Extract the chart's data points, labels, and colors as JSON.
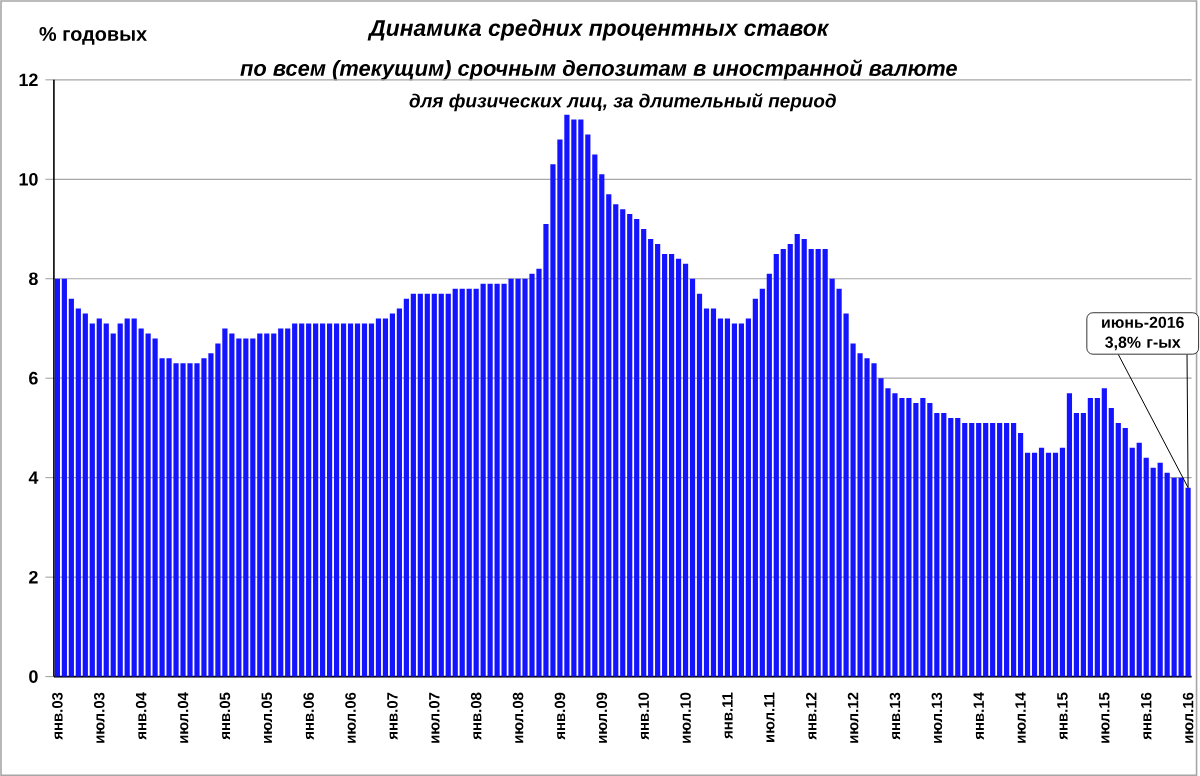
{
  "chart_data": {
    "type": "bar",
    "title": "Динамика средних процентных ставок",
    "subtitle": "по **всем** (текущим) срочным депозитам в иностранной валюте",
    "ylabel": "% годовых",
    "annotations": [
      "для физических лиц, за длительный период",
      "июнь-2016 3,8% г-ых"
    ],
    "categories": [
      "янв.03",
      null,
      null,
      null,
      null,
      null,
      "июл.03",
      null,
      null,
      null,
      null,
      null,
      "янв.04",
      null,
      null,
      null,
      null,
      null,
      "июл.04",
      null,
      null,
      null,
      null,
      null,
      "янв.05",
      null,
      null,
      null,
      null,
      null,
      "июл.05",
      null,
      null,
      null,
      null,
      null,
      "янв.06",
      null,
      null,
      null,
      null,
      null,
      "июл.06",
      null,
      null,
      null,
      null,
      null,
      "янв.07",
      null,
      null,
      null,
      null,
      null,
      "июл.07",
      null,
      null,
      null,
      null,
      null,
      "янв.08",
      null,
      null,
      null,
      null,
      null,
      "июл.08",
      null,
      null,
      null,
      null,
      null,
      "янв.09",
      null,
      null,
      null,
      null,
      null,
      "июл.09",
      null,
      null,
      null,
      null,
      null,
      "янв.10",
      null,
      null,
      null,
      null,
      null,
      "июл.10",
      null,
      null,
      null,
      null,
      null,
      "янв.11",
      null,
      null,
      null,
      null,
      null,
      "июл.11",
      null,
      null,
      null,
      null,
      null,
      "янв.12",
      null,
      null,
      null,
      null,
      null,
      "июл.12",
      null,
      null,
      null,
      null,
      null,
      "янв.13",
      null,
      null,
      null,
      null,
      null,
      "июл.13",
      null,
      null,
      null,
      null,
      null,
      "янв.14",
      null,
      null,
      null,
      null,
      null,
      "июл.14",
      null,
      null,
      null,
      null,
      null,
      "янв.15",
      null,
      null,
      null,
      null,
      null,
      "июл.15",
      null,
      null,
      null,
      null,
      null,
      "янв.16",
      null,
      null,
      null,
      null,
      null,
      "июл.16"
    ],
    "values": [
      8.0,
      8.0,
      7.6,
      7.4,
      7.3,
      7.1,
      7.2,
      7.1,
      6.9,
      7.1,
      7.2,
      7.2,
      7.0,
      6.9,
      6.8,
      6.4,
      6.4,
      6.3,
      6.3,
      6.3,
      6.3,
      6.4,
      6.5,
      6.7,
      7.0,
      6.9,
      6.8,
      6.8,
      6.8,
      6.9,
      6.9,
      6.9,
      7.0,
      7.0,
      7.1,
      7.1,
      7.1,
      7.1,
      7.1,
      7.1,
      7.1,
      7.1,
      7.1,
      7.1,
      7.1,
      7.1,
      7.2,
      7.2,
      7.3,
      7.4,
      7.6,
      7.7,
      7.7,
      7.7,
      7.7,
      7.7,
      7.7,
      7.8,
      7.8,
      7.8,
      7.8,
      7.9,
      7.9,
      7.9,
      7.9,
      8.0,
      8.0,
      8.0,
      8.1,
      8.2,
      9.1,
      10.3,
      10.8,
      11.3,
      11.2,
      11.2,
      10.9,
      10.5,
      10.1,
      9.7,
      9.5,
      9.4,
      9.3,
      9.2,
      9.0,
      8.8,
      8.7,
      8.5,
      8.5,
      8.4,
      8.3,
      8.0,
      7.7,
      7.4,
      7.4,
      7.2,
      7.2,
      7.1,
      7.1,
      7.2,
      7.6,
      7.8,
      8.1,
      8.5,
      8.6,
      8.7,
      8.9,
      8.8,
      8.6,
      8.6,
      8.6,
      8.0,
      7.8,
      7.3,
      6.7,
      6.5,
      6.4,
      6.3,
      6.0,
      5.8,
      5.7,
      5.6,
      5.6,
      5.5,
      5.6,
      5.5,
      5.3,
      5.3,
      5.2,
      5.2,
      5.1,
      5.1,
      5.1,
      5.1,
      5.1,
      5.1,
      5.1,
      5.1,
      4.9,
      4.5,
      4.5,
      4.6,
      4.5,
      4.5,
      4.6,
      5.7,
      5.3,
      5.3,
      5.6,
      5.6,
      5.8,
      5.4,
      5.1,
      5.0,
      4.6,
      4.7,
      4.4,
      4.2,
      4.3,
      4.1,
      4.0,
      4.0,
      3.8
    ],
    "color": "#1414ff",
    "ylim": [
      0,
      12
    ],
    "yticks": [
      0,
      2,
      4,
      6,
      8,
      10,
      12
    ],
    "grid": "y"
  }
}
